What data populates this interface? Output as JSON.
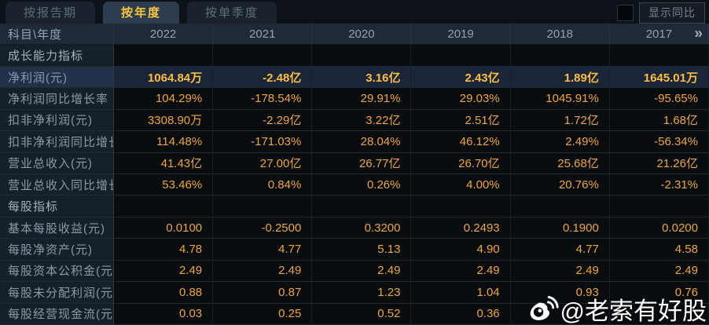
{
  "tabs": [
    {
      "label": "按报告期",
      "active": false
    },
    {
      "label": "按年度",
      "active": true
    },
    {
      "label": "按单季度",
      "active": false
    }
  ],
  "controls": {
    "compare_checkbox_checked": false,
    "compare_label": "显示同比"
  },
  "table": {
    "corner_header": "科目\\年度",
    "year_columns": [
      "2022",
      "2021",
      "2020",
      "2019",
      "2018",
      "2017"
    ],
    "more_icon": "»"
  },
  "rows": [
    {
      "type": "section",
      "label": "成长能力指标",
      "values": [
        "",
        "",
        "",
        "",
        "",
        ""
      ]
    },
    {
      "type": "data",
      "highlight": true,
      "label": "净利润(元)",
      "values": [
        "1064.84万",
        "-2.48亿",
        "3.16亿",
        "2.43亿",
        "1.89亿",
        "1645.01万"
      ]
    },
    {
      "type": "data",
      "label": "净利润同比增长率",
      "values": [
        "104.29%",
        "-178.54%",
        "29.91%",
        "29.03%",
        "1045.91%",
        "-95.65%"
      ]
    },
    {
      "type": "data",
      "label": "扣非净利润(元)",
      "values": [
        "3308.90万",
        "-2.29亿",
        "3.22亿",
        "2.51亿",
        "1.72亿",
        "1.68亿"
      ]
    },
    {
      "type": "data",
      "label": "扣非净利润同比增长率",
      "values": [
        "114.48%",
        "-171.03%",
        "28.04%",
        "46.12%",
        "2.49%",
        "-56.34%"
      ]
    },
    {
      "type": "data",
      "label": "营业总收入(元)",
      "values": [
        "41.43亿",
        "27.00亿",
        "26.77亿",
        "26.70亿",
        "25.68亿",
        "21.26亿"
      ]
    },
    {
      "type": "data",
      "label": "营业总收入同比增长率",
      "values": [
        "53.46%",
        "0.84%",
        "0.26%",
        "4.00%",
        "20.76%",
        "-2.31%"
      ]
    },
    {
      "type": "section",
      "label": "每股指标",
      "values": [
        "",
        "",
        "",
        "",
        "",
        ""
      ]
    },
    {
      "type": "data",
      "label": "基本每股收益(元)",
      "values": [
        "0.0100",
        "-0.2500",
        "0.3200",
        "0.2493",
        "0.1900",
        "0.0200"
      ]
    },
    {
      "type": "data",
      "label": "每股净资产(元)",
      "values": [
        "4.78",
        "4.77",
        "5.13",
        "4.90",
        "4.77",
        "4.58"
      ]
    },
    {
      "type": "data",
      "label": "每股资本公积金(元)",
      "values": [
        "2.49",
        "2.49",
        "2.49",
        "2.49",
        "2.49",
        "2.49"
      ]
    },
    {
      "type": "data",
      "label": "每股未分配利润(元)",
      "values": [
        "0.88",
        "0.87",
        "1.23",
        "1.04",
        "0.93",
        "0.76"
      ]
    },
    {
      "type": "data",
      "label": "每股经营现金流(元)",
      "values": [
        "0.03",
        "0.25",
        "0.52",
        "0.36",
        "",
        ""
      ]
    }
  ],
  "watermark": {
    "text": "@老索有好股",
    "icon": "weibo-icon"
  },
  "colors": {
    "tab_active_text": "#f6c63e",
    "value_gold": "#efa53d",
    "highlight_value_gold": "#fcbe3f",
    "highlight_row_bg": "#1a2539",
    "header_bg": "#1f2a36",
    "label_col_bg": "#16202b",
    "data_cell_bg": "#0a0d10",
    "watermark_color": "#ffffff"
  }
}
